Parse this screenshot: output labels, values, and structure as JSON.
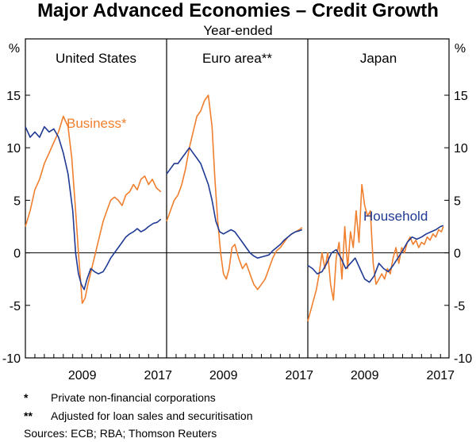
{
  "title": "Major Advanced Economies – Credit Growth",
  "subtitle": "Year-ended",
  "axis_unit_left": "%",
  "axis_unit_right": "%",
  "colors": {
    "business": "#f07f2e",
    "household": "#1f3a93",
    "frame": "#000000",
    "zero": "#000000"
  },
  "chart_data": {
    "type": "line",
    "ylim": [
      -10,
      17
    ],
    "yticks": [
      15,
      10,
      5,
      0,
      -5,
      -10
    ],
    "panels": [
      {
        "name": "United States",
        "title": "United States",
        "xlim": [
          2003.0,
          2017.9
        ],
        "xticks": [
          2009,
          2017
        ],
        "annotations": [
          {
            "text": "Business*",
            "series": "business"
          }
        ],
        "series": [
          {
            "name": "Business",
            "key": "business",
            "x": [
              2003.0,
              2003.5,
              2004.0,
              2004.5,
              2005.0,
              2005.5,
              2006.0,
              2006.5,
              2007.0,
              2007.5,
              2007.9,
              2008.3,
              2008.6,
              2009.0,
              2009.3,
              2009.6,
              2010.0,
              2010.4,
              2010.8,
              2011.2,
              2011.6,
              2012.0,
              2012.4,
              2012.8,
              2013.2,
              2013.6,
              2014.0,
              2014.4,
              2014.8,
              2015.2,
              2015.6,
              2016.0,
              2016.4,
              2016.8,
              2017.3
            ],
            "values": [
              2.5,
              4.0,
              6.0,
              7.0,
              8.5,
              9.5,
              10.5,
              11.5,
              13.0,
              12.0,
              9.0,
              4.0,
              0.0,
              -4.8,
              -4.3,
              -3.0,
              -1.5,
              0.0,
              1.5,
              3.0,
              4.0,
              5.0,
              5.3,
              5.0,
              4.5,
              5.5,
              5.8,
              6.5,
              6.0,
              7.0,
              7.3,
              6.5,
              7.0,
              6.2,
              5.8
            ]
          },
          {
            "name": "Household",
            "key": "household",
            "x": [
              2003.0,
              2003.5,
              2004.0,
              2004.5,
              2005.0,
              2005.5,
              2006.0,
              2006.5,
              2007.0,
              2007.5,
              2008.0,
              2008.3,
              2008.6,
              2008.9,
              2009.2,
              2009.5,
              2009.9,
              2010.3,
              2010.7,
              2011.2,
              2011.6,
              2012.0,
              2012.4,
              2012.8,
              2013.2,
              2013.6,
              2014.0,
              2014.4,
              2014.8,
              2015.2,
              2015.6,
              2016.0,
              2016.5,
              2016.9,
              2017.3
            ],
            "values": [
              12.0,
              11.0,
              11.5,
              11.0,
              12.0,
              11.5,
              11.8,
              11.0,
              9.5,
              7.5,
              4.0,
              0.0,
              -2.0,
              -3.0,
              -3.5,
              -2.5,
              -1.5,
              -1.8,
              -2.0,
              -1.8,
              -1.2,
              -0.5,
              0.0,
              0.5,
              1.0,
              1.5,
              1.8,
              2.0,
              2.3,
              2.0,
              2.2,
              2.5,
              2.8,
              2.9,
              3.2
            ]
          }
        ]
      },
      {
        "name": "Euro area",
        "title": "Euro area**",
        "xlim": [
          2003.0,
          2017.9
        ],
        "xticks": [
          2009,
          2017
        ],
        "annotations": [],
        "series": [
          {
            "name": "Business",
            "key": "business",
            "x": [
              2003.0,
              2003.4,
              2003.8,
              2004.2,
              2004.6,
              2005.0,
              2005.4,
              2005.8,
              2006.2,
              2006.6,
              2007.0,
              2007.4,
              2007.8,
              2008.1,
              2008.4,
              2008.7,
              2009.0,
              2009.3,
              2009.6,
              2009.9,
              2010.2,
              2010.6,
              2011.0,
              2011.4,
              2011.8,
              2012.2,
              2012.6,
              2013.0,
              2013.4,
              2013.8,
              2014.2,
              2014.6,
              2015.0,
              2015.4,
              2015.8,
              2016.2,
              2016.6,
              2017.0,
              2017.3
            ],
            "values": [
              3.0,
              4.0,
              5.0,
              5.5,
              6.5,
              8.0,
              10.0,
              11.5,
              13.0,
              13.5,
              14.5,
              15.0,
              12.0,
              7.0,
              3.0,
              0.0,
              -2.0,
              -2.5,
              -1.5,
              0.5,
              0.8,
              -0.5,
              -1.5,
              -1.0,
              -2.0,
              -3.0,
              -3.5,
              -3.0,
              -2.5,
              -1.5,
              -0.5,
              0.2,
              0.5,
              1.0,
              1.5,
              1.8,
              2.0,
              2.2,
              2.4
            ]
          },
          {
            "name": "Household",
            "key": "household",
            "x": [
              2003.0,
              2003.4,
              2003.8,
              2004.2,
              2004.6,
              2005.0,
              2005.4,
              2005.8,
              2006.2,
              2006.6,
              2007.0,
              2007.4,
              2007.8,
              2008.2,
              2008.6,
              2009.0,
              2009.4,
              2009.8,
              2010.2,
              2010.6,
              2011.0,
              2011.4,
              2011.8,
              2012.2,
              2012.6,
              2013.0,
              2013.4,
              2013.8,
              2014.2,
              2014.6,
              2015.0,
              2015.4,
              2015.8,
              2016.2,
              2016.6,
              2017.0,
              2017.3
            ],
            "values": [
              7.5,
              8.0,
              8.5,
              8.5,
              9.0,
              9.5,
              10.0,
              9.5,
              9.0,
              8.5,
              7.5,
              6.5,
              5.0,
              3.0,
              2.0,
              1.8,
              2.0,
              2.2,
              2.0,
              1.5,
              1.0,
              0.5,
              0.0,
              -0.3,
              -0.5,
              -0.4,
              -0.3,
              -0.2,
              0.2,
              0.5,
              0.8,
              1.2,
              1.5,
              1.8,
              2.0,
              2.1,
              2.2
            ]
          }
        ]
      },
      {
        "name": "Japan",
        "title": "Japan",
        "xlim": [
          2003.0,
          2017.9
        ],
        "xticks": [
          2009,
          2017
        ],
        "annotations": [
          {
            "text": "Household",
            "series": "household"
          }
        ],
        "series": [
          {
            "name": "Business",
            "key": "business",
            "x": [
              2003.0,
              2003.3,
              2003.6,
              2003.9,
              2004.2,
              2004.5,
              2004.8,
              2005.1,
              2005.4,
              2005.7,
              2006.0,
              2006.3,
              2006.6,
              2006.9,
              2007.2,
              2007.5,
              2007.8,
              2008.1,
              2008.4,
              2008.7,
              2009.0,
              2009.3,
              2009.6,
              2009.9,
              2010.2,
              2010.5,
              2010.8,
              2011.1,
              2011.4,
              2011.7,
              2012.0,
              2012.3,
              2012.6,
              2012.9,
              2013.2,
              2013.5,
              2013.8,
              2014.1,
              2014.4,
              2014.7,
              2015.0,
              2015.3,
              2015.6,
              2015.9,
              2016.2,
              2016.5,
              2016.8,
              2017.1,
              2017.3
            ],
            "values": [
              -6.5,
              -5.5,
              -4.5,
              -3.5,
              -2.0,
              0.0,
              -1.5,
              0.0,
              -3.0,
              -4.5,
              -0.5,
              1.0,
              -2.5,
              2.5,
              -1.5,
              2.0,
              0.5,
              4.0,
              1.0,
              6.5,
              4.5,
              3.5,
              4.0,
              -1.0,
              -3.0,
              -2.5,
              -2.0,
              -2.5,
              -1.5,
              -2.0,
              -0.5,
              0.5,
              -1.0,
              0.5,
              0.0,
              1.0,
              1.5,
              0.8,
              1.2,
              0.5,
              1.0,
              0.8,
              1.5,
              1.2,
              1.8,
              1.5,
              2.2,
              2.0,
              2.5
            ]
          },
          {
            "name": "Household",
            "key": "household",
            "x": [
              2003.0,
              2003.5,
              2004.0,
              2004.5,
              2005.0,
              2005.5,
              2006.0,
              2006.5,
              2007.0,
              2007.5,
              2008.0,
              2008.5,
              2009.0,
              2009.5,
              2010.0,
              2010.5,
              2011.0,
              2011.5,
              2012.0,
              2012.5,
              2013.0,
              2013.5,
              2014.0,
              2014.5,
              2015.0,
              2015.5,
              2016.0,
              2016.5,
              2017.0,
              2017.3
            ],
            "values": [
              -1.2,
              -1.5,
              -2.0,
              -1.8,
              -1.0,
              0.0,
              0.3,
              -0.5,
              -1.5,
              -1.0,
              -0.5,
              -1.5,
              -2.5,
              -2.8,
              -2.2,
              -1.0,
              -1.5,
              -1.8,
              -1.2,
              -0.5,
              0.2,
              1.0,
              1.5,
              1.3,
              1.5,
              1.8,
              2.0,
              2.2,
              2.5,
              2.6
            ]
          }
        ]
      }
    ]
  },
  "notes": [
    {
      "mark": "*",
      "text": "Private non-financial corporations"
    },
    {
      "mark": "**",
      "text": "Adjusted for loan sales and securitisation"
    },
    {
      "mark": "",
      "text": "Sources: ECB; RBA; Thomson Reuters"
    }
  ]
}
